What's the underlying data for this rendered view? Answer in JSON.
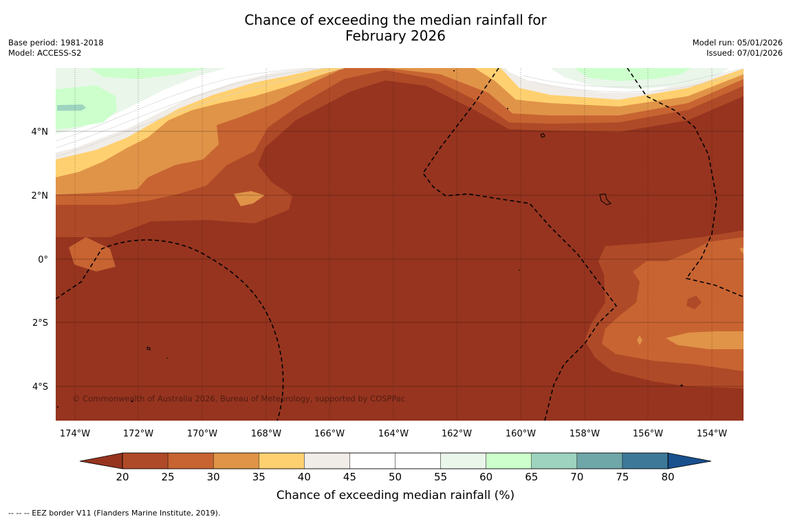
{
  "header": {
    "title_line1": "Chance of exceeding the median rainfall for",
    "title_line2": "February 2026",
    "base_period": "Base period: 1981-2018",
    "model": "Model: ACCESS-S2",
    "model_run": "Model run: 05/01/2026",
    "issued": "Issued: 07/01/2026"
  },
  "map": {
    "lat_labels": [
      "4°N",
      "2°N",
      "0°",
      "2°S",
      "4°S"
    ],
    "lon_labels": [
      "174°W",
      "172°W",
      "170°W",
      "168°W",
      "166°W",
      "164°W",
      "162°W",
      "160°W",
      "158°W",
      "156°W",
      "154°W"
    ],
    "copyright": "© Commonwealth of Australia 2026, Bureau of Meteorology, supported by COSPPac",
    "colors": {
      "lt20": "#96341F",
      "c20_25": "#AF4A28",
      "c25_30": "#C86432",
      "c30_35": "#E09448",
      "c35_40": "#FFD070",
      "c40_45": "#F0ECE8",
      "c45_55": "#FFFFFF",
      "c55_60": "#EAF6EA",
      "c60_65": "#CCFFCC",
      "c65_70": "#9ED3BF",
      "c70_75": "#6FA6A8",
      "c75_80": "#3D7899",
      "gt80": "#19508E"
    }
  },
  "colorbar": {
    "ticks": [
      "20",
      "25",
      "30",
      "35",
      "40",
      "45",
      "50",
      "55",
      "60",
      "65",
      "70",
      "75",
      "80"
    ],
    "label": "Chance of exceeding median rainfall (%)",
    "segment_colors": [
      "#AF4A28",
      "#C86432",
      "#E09448",
      "#FFD070",
      "#F0ECE8",
      "#FFFFFF",
      "#FFFFFF",
      "#EAF6EA",
      "#CCFFCC",
      "#9ED3BF",
      "#6FA6A8",
      "#3D7899"
    ],
    "low_color": "#96341F",
    "high_color": "#19508E"
  },
  "footnote": "--  --  -- EEZ border V11 (Flanders Marine Institute, 2019)."
}
